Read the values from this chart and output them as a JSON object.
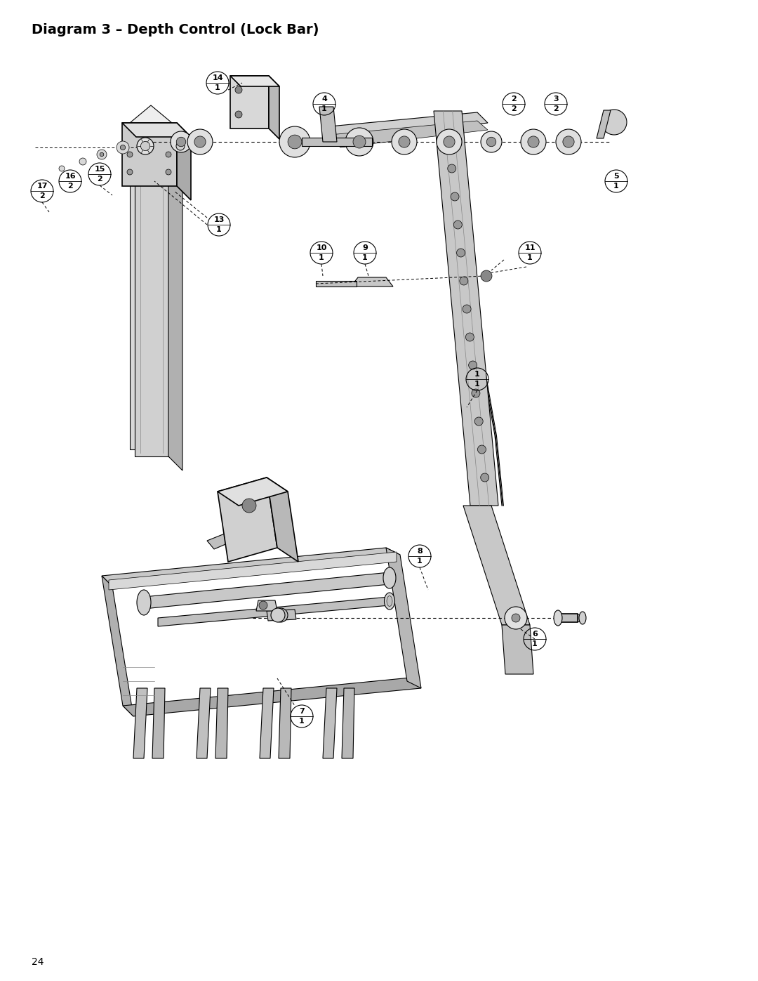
{
  "title": "Diagram 3 – Depth Control (Lock Bar)",
  "page_number": "24",
  "bg_color": "#ffffff",
  "line_color": "#000000",
  "part_label_color": "#000000",
  "title_fontsize": 14,
  "label_fontsize": 8,
  "page_fontsize": 10,
  "fig_width": 10.8,
  "fig_height": 13.97
}
